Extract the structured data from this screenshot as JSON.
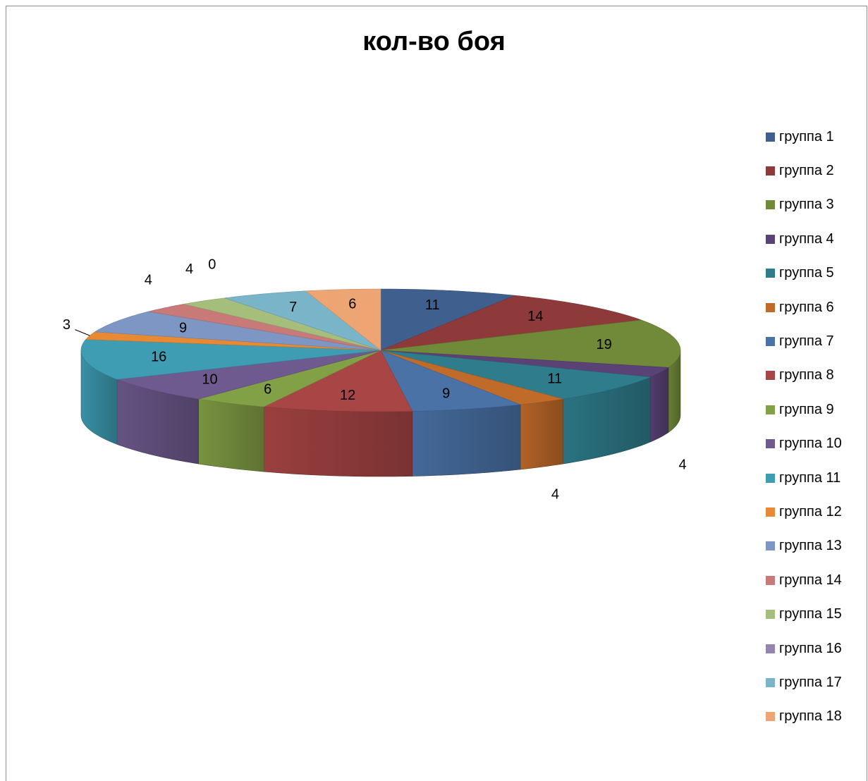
{
  "chart_data": {
    "type": "pie",
    "title": "кол-во боя",
    "legend_position": "right",
    "categories": [
      "группа 1",
      "группа 2",
      "группа 3",
      "группа 4",
      "группа 5",
      "группа 6",
      "группа 7",
      "группа 8",
      "группа 9",
      "группа 10",
      "группа 11",
      "группа 12",
      "группа 13",
      "группа 14",
      "группа 15",
      "группа 16",
      "группа 17",
      "группа 18"
    ],
    "values": [
      11,
      14,
      19,
      4,
      11,
      4,
      9,
      12,
      6,
      10,
      16,
      3,
      9,
      4,
      4,
      0,
      7,
      6
    ],
    "value_labels": [
      "11",
      "14",
      "19",
      "4",
      "11",
      "4",
      "9",
      "12",
      "6",
      "10",
      "16",
      "3",
      "9",
      "4",
      "4",
      "0",
      "7",
      "6"
    ],
    "colors": [
      "#3F5F8F",
      "#8E3A3A",
      "#718A3A",
      "#5A4276",
      "#2F7D8C",
      "#C06B2A",
      "#4A72A6",
      "#A84545",
      "#82A046",
      "#6E5A8E",
      "#3E9CB3",
      "#E88A33",
      "#7D96C4",
      "#C77A78",
      "#A6BE7C",
      "#9384B0",
      "#79B4C8",
      "#EEA574"
    ]
  }
}
